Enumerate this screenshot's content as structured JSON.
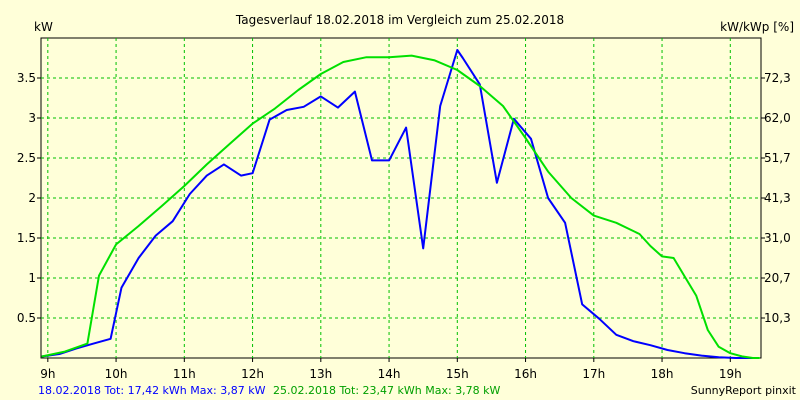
{
  "chart_data": {
    "type": "line",
    "title": "Tagesverlauf 18.02.2018 im Vergleich zum 25.02.2018",
    "ylabel": "kW",
    "y2label": "kW/kWp [%]",
    "xlim": [
      8.9,
      19.45
    ],
    "ylim": [
      0,
      4.0
    ],
    "grid": true,
    "x_ticks": [
      {
        "value": 9,
        "label": "9h"
      },
      {
        "value": 10,
        "label": "10h"
      },
      {
        "value": 11,
        "label": "11h"
      },
      {
        "value": 12,
        "label": "12h"
      },
      {
        "value": 13,
        "label": "13h"
      },
      {
        "value": 14,
        "label": "14h"
      },
      {
        "value": 15,
        "label": "15h"
      },
      {
        "value": 16,
        "label": "16h"
      },
      {
        "value": 17,
        "label": "17h"
      },
      {
        "value": 18,
        "label": "18h"
      },
      {
        "value": 19,
        "label": "19h"
      }
    ],
    "y_ticks": [
      {
        "value": 0.5,
        "label": "0.5"
      },
      {
        "value": 1,
        "label": "1"
      },
      {
        "value": 1.5,
        "label": "1.5"
      },
      {
        "value": 2,
        "label": "2"
      },
      {
        "value": 2.5,
        "label": "2.5"
      },
      {
        "value": 3,
        "label": "3"
      },
      {
        "value": 3.5,
        "label": "3.5"
      }
    ],
    "y2_ticks": [
      {
        "value": 0.5,
        "label": "10,3"
      },
      {
        "value": 1,
        "label": "20,7"
      },
      {
        "value": 1.5,
        "label": "31,0"
      },
      {
        "value": 2,
        "label": "41,3"
      },
      {
        "value": 2.5,
        "label": "51,7"
      },
      {
        "value": 3,
        "label": "62,0"
      },
      {
        "value": 3.5,
        "label": "72,3"
      }
    ],
    "series": [
      {
        "name": "18.02.2018",
        "color": "#0000ff",
        "x": [
          8.92,
          9.17,
          9.42,
          9.67,
          9.92,
          10.08,
          10.33,
          10.58,
          10.83,
          11.08,
          11.33,
          11.58,
          11.83,
          12.0,
          12.25,
          12.5,
          12.75,
          13.0,
          13.25,
          13.5,
          13.75,
          14.0,
          14.25,
          14.5,
          14.75,
          15.0,
          15.08,
          15.33,
          15.58,
          15.83,
          16.08,
          16.33,
          16.58,
          16.83,
          17.08,
          17.33,
          17.58,
          17.83,
          18.08,
          18.33,
          18.58,
          18.83,
          19.08,
          19.33
        ],
        "y": [
          0.02,
          0.05,
          0.12,
          0.18,
          0.24,
          0.88,
          1.25,
          1.53,
          1.71,
          2.05,
          2.28,
          2.42,
          2.28,
          2.31,
          2.98,
          3.1,
          3.14,
          3.27,
          3.13,
          3.33,
          2.47,
          2.47,
          2.88,
          1.37,
          3.15,
          3.85,
          3.75,
          3.42,
          2.19,
          2.99,
          2.74,
          2.0,
          1.69,
          0.67,
          0.49,
          0.29,
          0.21,
          0.16,
          0.1,
          0.06,
          0.03,
          0.01,
          0.0,
          0.0
        ]
      },
      {
        "name": "25.02.2018",
        "color": "#00e000",
        "x": [
          8.92,
          9.25,
          9.58,
          9.75,
          10.0,
          10.33,
          10.67,
          11.0,
          11.33,
          11.67,
          12.0,
          12.33,
          12.67,
          13.0,
          13.33,
          13.67,
          14.0,
          14.33,
          14.67,
          15.0,
          15.33,
          15.67,
          16.0,
          16.33,
          16.67,
          17.0,
          17.33,
          17.67,
          17.83,
          18.0,
          18.17,
          18.33,
          18.5,
          18.67,
          18.83,
          19.0,
          19.17,
          19.33,
          19.42
        ],
        "y": [
          0.02,
          0.08,
          0.18,
          1.03,
          1.42,
          1.65,
          1.9,
          2.15,
          2.42,
          2.68,
          2.93,
          3.12,
          3.35,
          3.55,
          3.7,
          3.76,
          3.76,
          3.78,
          3.72,
          3.6,
          3.4,
          3.15,
          2.75,
          2.33,
          2.0,
          1.78,
          1.69,
          1.55,
          1.4,
          1.27,
          1.25,
          1.02,
          0.78,
          0.35,
          0.14,
          0.06,
          0.02,
          0.0,
          0.0
        ]
      }
    ]
  },
  "footer": {
    "left_series1": "18.02.2018 Tot: 17,42 kWh Max: 3,87 kW",
    "left_series2": "25.02.2018 Tot: 23,47 kWh Max: 3,78 kW",
    "right": "SunnyReport pinxit"
  },
  "colors": {
    "background": "#ffffd9",
    "grid": "#00c000",
    "series1": "#0000ff",
    "series2": "#00e000"
  }
}
